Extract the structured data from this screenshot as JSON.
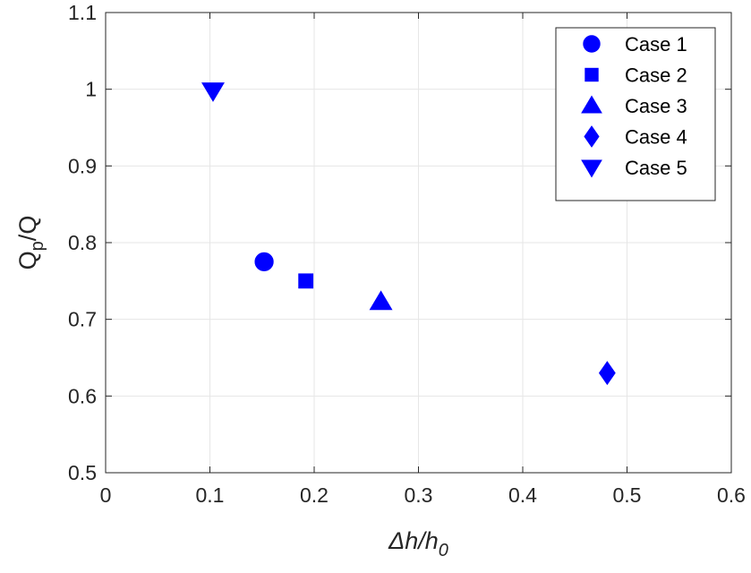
{
  "chart_data": {
    "type": "scatter",
    "title": "",
    "xlabel": {
      "base": "Δh/h",
      "sub": "0"
    },
    "ylabel": {
      "base": "Q",
      "sub": "p",
      "tail": "/Q"
    },
    "xlim": [
      0,
      0.6
    ],
    "ylim": [
      0.5,
      1.1
    ],
    "xticks": [
      0,
      0.1,
      0.2,
      0.3,
      0.4,
      0.5,
      0.6
    ],
    "yticks": [
      0.5,
      0.6,
      0.7,
      0.8,
      0.9,
      1,
      1.1
    ],
    "xtick_labels": [
      "0",
      "0.1",
      "0.2",
      "0.3",
      "0.4",
      "0.5",
      "0.6"
    ],
    "ytick_labels": [
      "0.5",
      "0.6",
      "0.7",
      "0.8",
      "0.9",
      "1",
      "1.1"
    ],
    "grid": true,
    "legend_position": "top-right",
    "marker_color": "#0000ff",
    "series": [
      {
        "name": "Case 1",
        "marker": "circle",
        "x": [
          0.152
        ],
        "y": [
          0.775
        ]
      },
      {
        "name": "Case 2",
        "marker": "square",
        "x": [
          0.192
        ],
        "y": [
          0.75
        ]
      },
      {
        "name": "Case 3",
        "marker": "triangle-up",
        "x": [
          0.264
        ],
        "y": [
          0.723
        ]
      },
      {
        "name": "Case 4",
        "marker": "diamond",
        "x": [
          0.481
        ],
        "y": [
          0.63
        ]
      },
      {
        "name": "Case 5",
        "marker": "triangle-down",
        "x": [
          0.103
        ],
        "y": [
          0.998
        ]
      }
    ]
  }
}
